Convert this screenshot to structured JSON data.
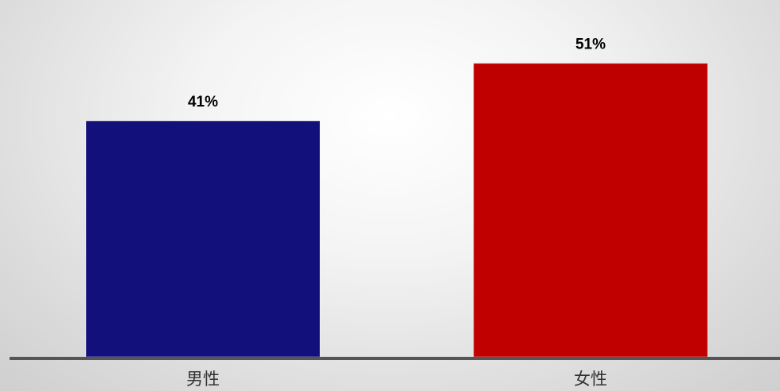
{
  "chart_data": {
    "type": "bar",
    "categories": [
      "男性",
      "女性"
    ],
    "values": [
      41,
      51
    ],
    "value_labels": [
      "41%",
      "51%"
    ],
    "ylim": [
      0,
      62
    ],
    "grid": false,
    "legend": "none",
    "title": "",
    "xlabel": "",
    "ylabel": ""
  },
  "colors": {
    "bars": [
      "#12107a",
      "#c00000"
    ],
    "axis": "#555555"
  }
}
